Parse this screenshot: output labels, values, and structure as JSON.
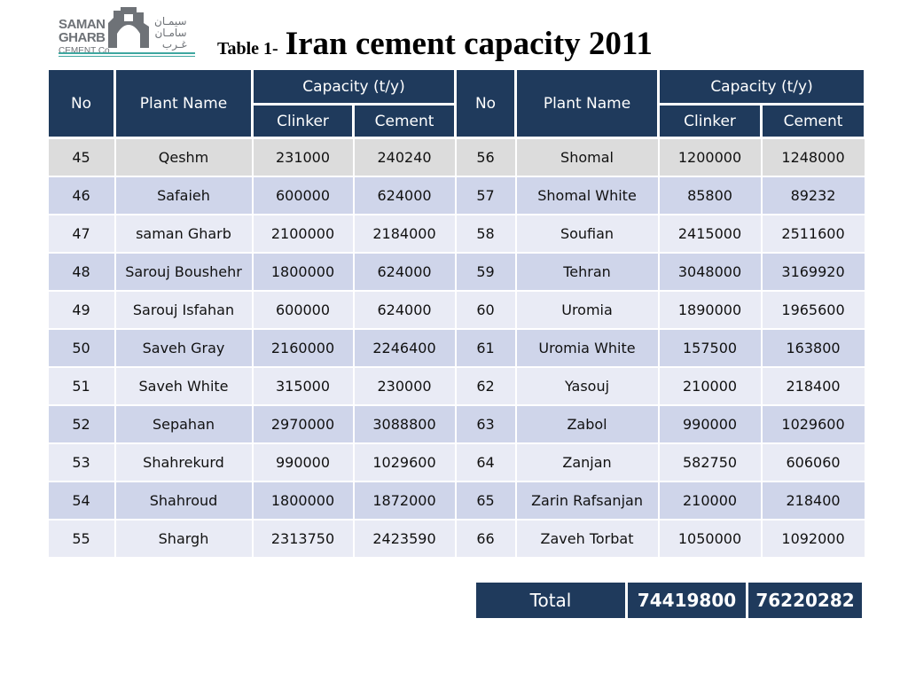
{
  "logo": {
    "line1": "SAMAN",
    "line2": "GHARB",
    "line3": "CEMENT Co.",
    "arabic1": "سيمـان",
    "arabic2": "سامـان",
    "arabic3": "غـرب"
  },
  "title": {
    "prefix": "Table 1-",
    "main": "Iran cement capacity 2011"
  },
  "table": {
    "headers": {
      "no": "No",
      "plant": "Plant Name",
      "capacity": "Capacity (t/y)",
      "clinker": "Clinker",
      "cement": "Cement"
    },
    "rows": [
      [
        "45",
        "Qeshm",
        "231000",
        "240240",
        "56",
        "Shomal",
        "1200000",
        "1248000"
      ],
      [
        "46",
        "Safaieh",
        "600000",
        "624000",
        "57",
        "Shomal White",
        "85800",
        "89232"
      ],
      [
        "47",
        "saman Gharb",
        "2100000",
        "2184000",
        "58",
        "Soufian",
        "2415000",
        "2511600"
      ],
      [
        "48",
        "Sarouj Boushehr",
        "1800000",
        "624000",
        "59",
        "Tehran",
        "3048000",
        "3169920"
      ],
      [
        "49",
        "Sarouj Isfahan",
        "600000",
        "624000",
        "60",
        "Uromia",
        "1890000",
        "1965600"
      ],
      [
        "50",
        "Saveh Gray",
        "2160000",
        "2246400",
        "61",
        "Uromia White",
        "157500",
        "163800"
      ],
      [
        "51",
        "Saveh White",
        "315000",
        "230000",
        "62",
        "Yasouj",
        "210000",
        "218400"
      ],
      [
        "52",
        "Sepahan",
        "2970000",
        "3088800",
        "63",
        "Zabol",
        "990000",
        "1029600"
      ],
      [
        "53",
        "Shahrekurd",
        "990000",
        "1029600",
        "64",
        "Zanjan",
        "582750",
        "606060"
      ],
      [
        "54",
        "Shahroud",
        "1800000",
        "1872000",
        "65",
        "Zarin Rafsanjan",
        "210000",
        "218400"
      ],
      [
        "55",
        "Shargh",
        "2313750",
        "2423590",
        "66",
        "Zaveh Torbat",
        "1050000",
        "1092000"
      ]
    ]
  },
  "total": {
    "label": "Total",
    "clinker": "74419800",
    "cement": "76220282"
  },
  "colors": {
    "header": "#1f3a5c",
    "row_light": "#e9ebf5",
    "row_dark": "#cfd5ea",
    "logo_rule": "#3fa7a0"
  }
}
